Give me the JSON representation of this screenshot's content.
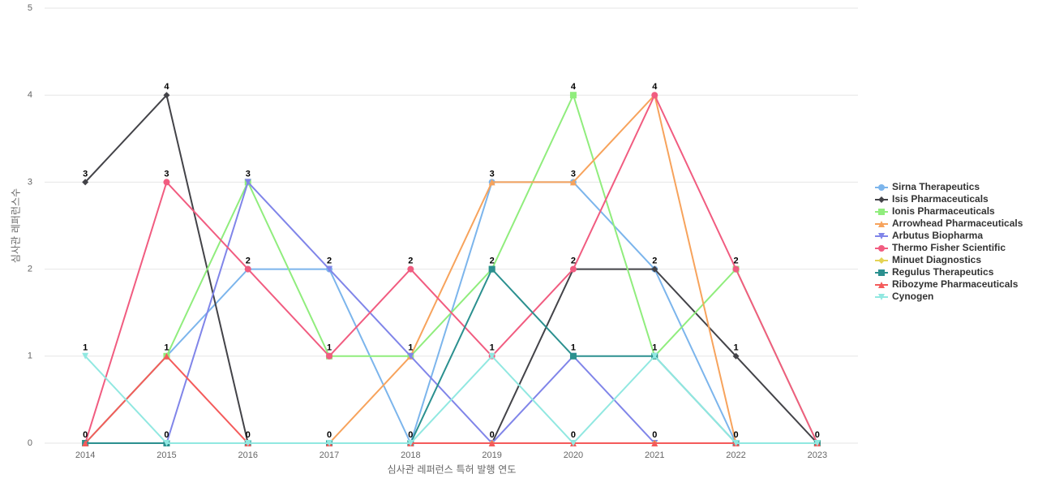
{
  "chart_data": {
    "type": "line",
    "x_label": "심사관 레퍼런스 특허 발행 연도",
    "y_label": "심사관 레퍼런스수",
    "categories": [
      "2014",
      "2015",
      "2016",
      "2017",
      "2018",
      "2019",
      "2020",
      "2021",
      "2022",
      "2023"
    ],
    "ylim": [
      0,
      5
    ],
    "yticks": [
      0,
      1,
      2,
      3,
      4,
      5
    ],
    "grid": true,
    "legend": "right",
    "series": [
      {
        "name": "Sirna Therapeutics",
        "color": "#7cb5ec",
        "values": [
          0,
          1,
          2,
          2,
          0,
          3,
          3,
          2,
          0,
          0
        ]
      },
      {
        "name": "Isis Pharmaceuticals",
        "color": "#434348",
        "values": [
          3,
          4,
          0,
          0,
          0,
          0,
          2,
          2,
          1,
          0
        ]
      },
      {
        "name": "Ionis Pharmaceuticals",
        "color": "#90ed7d",
        "values": [
          0,
          1,
          3,
          1,
          1,
          2,
          4,
          1,
          2,
          0
        ]
      },
      {
        "name": "Arrowhead Pharmaceuticals",
        "color": "#f7a35c",
        "values": [
          0,
          0,
          0,
          0,
          1,
          3,
          3,
          4,
          0,
          0
        ]
      },
      {
        "name": "Arbutus Biopharma",
        "color": "#8085e9",
        "values": [
          0,
          0,
          3,
          2,
          1,
          0,
          1,
          0,
          0,
          0
        ]
      },
      {
        "name": "Thermo Fisher Scientific",
        "color": "#f15c80",
        "values": [
          0,
          3,
          2,
          1,
          2,
          1,
          2,
          4,
          2,
          0
        ]
      },
      {
        "name": "Minuet Diagnostics",
        "color": "#e4d354",
        "values": [
          0,
          0,
          0,
          0,
          0,
          0,
          0,
          0,
          0,
          0
        ]
      },
      {
        "name": "Regulus Therapeutics",
        "color": "#2b908f",
        "values": [
          0,
          0,
          0,
          0,
          0,
          2,
          1,
          1,
          0,
          0
        ]
      },
      {
        "name": "Ribozyme Pharmaceuticals",
        "color": "#f45b5b",
        "values": [
          0,
          1,
          0,
          0,
          0,
          0,
          0,
          0,
          0,
          0
        ]
      },
      {
        "name": "Cynogen",
        "color": "#91e8e1",
        "values": [
          1,
          0,
          0,
          0,
          0,
          1,
          0,
          1,
          0,
          0
        ]
      }
    ]
  }
}
